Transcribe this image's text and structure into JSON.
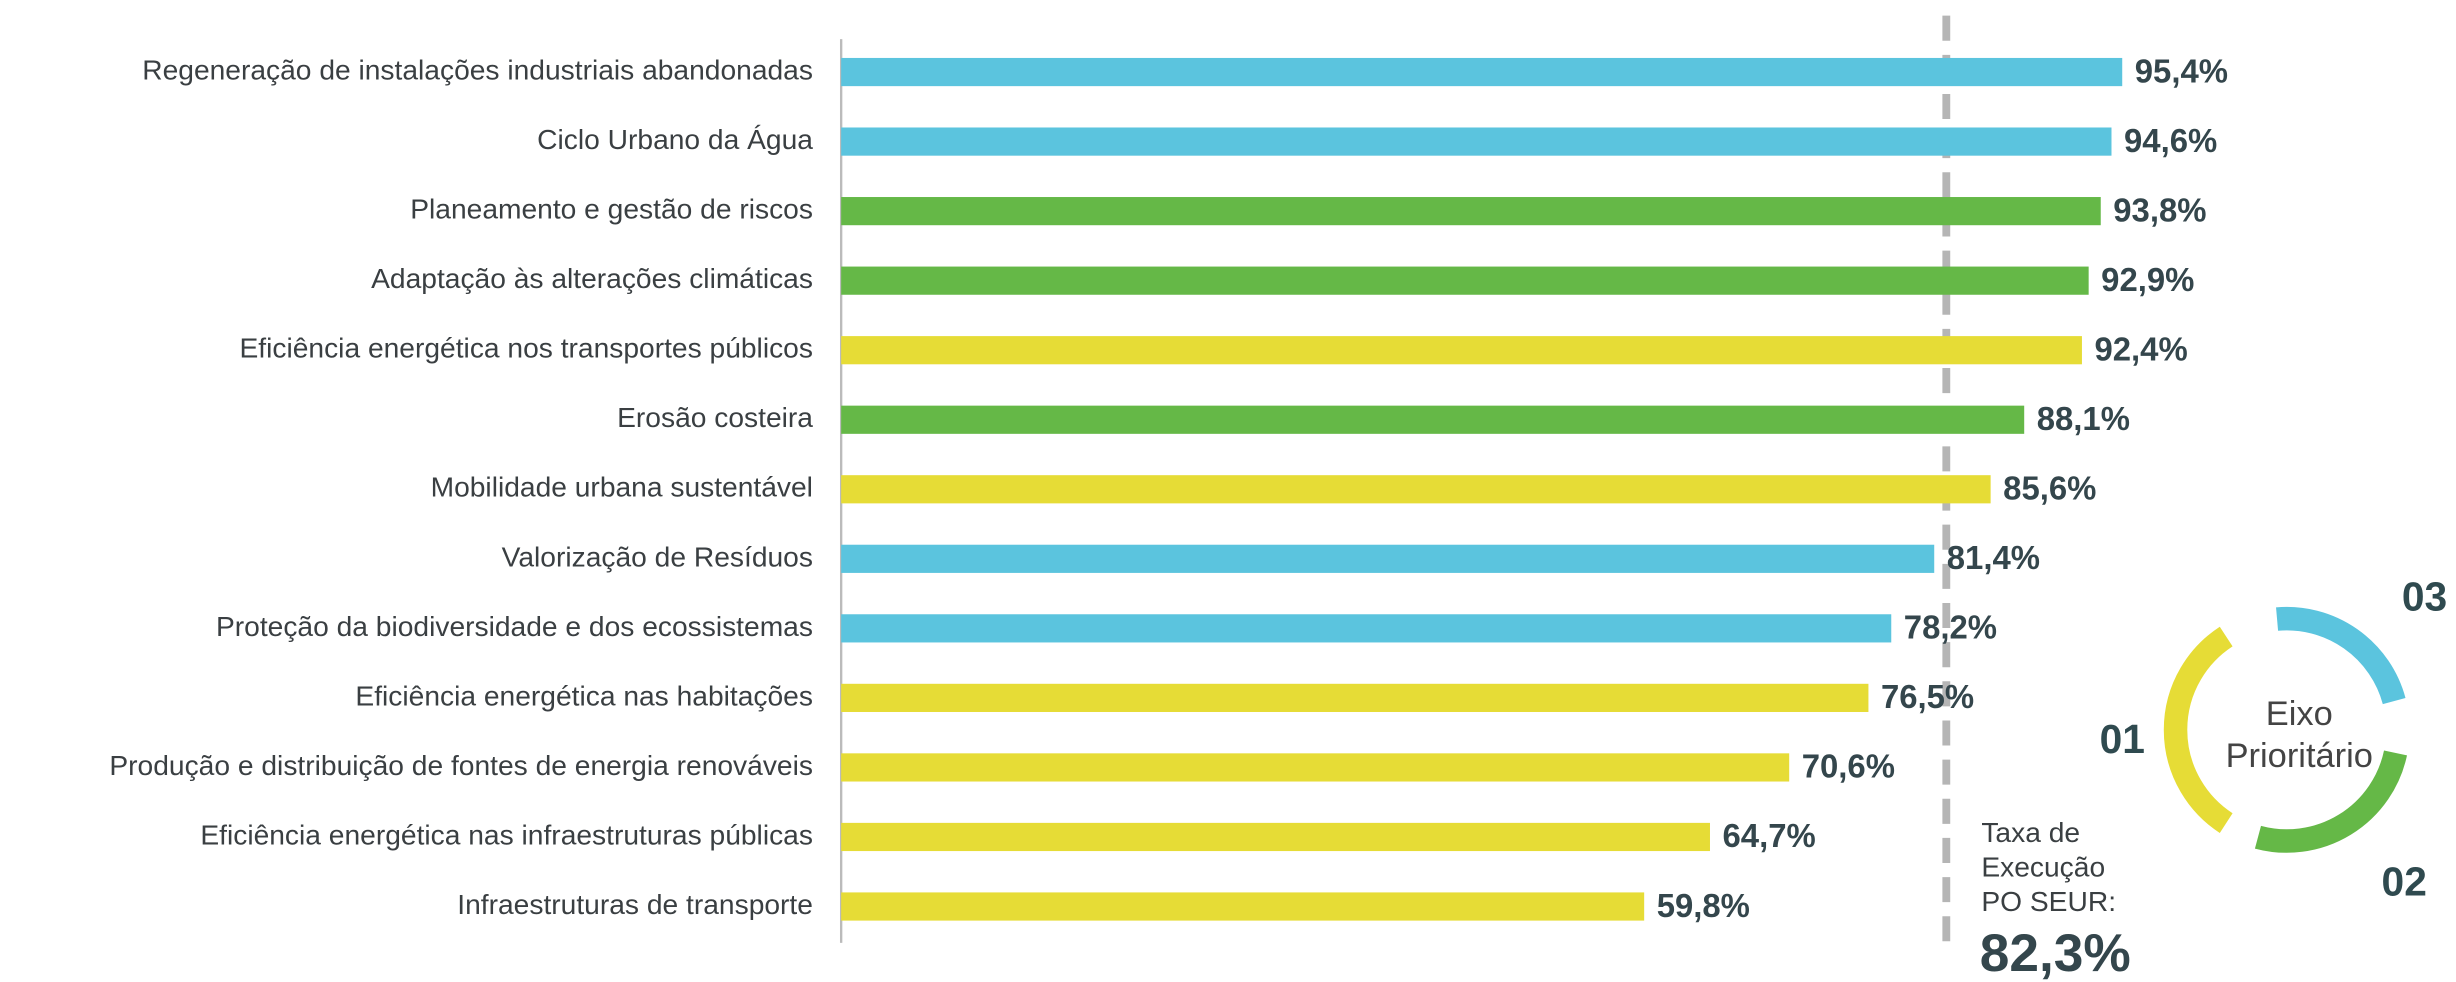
{
  "chart_data": {
    "type": "bar",
    "orientation": "horizontal",
    "categories": [
      "Regeneração de instalações industriais abandonadas",
      "Ciclo Urbano da Água",
      "Planeamento e gestão de riscos",
      "Adaptação às alterações climáticas",
      "Eficiência energética nos transportes públicos",
      "Erosão costeira",
      "Mobilidade urbana sustentável",
      "Valorização de Resíduos",
      "Proteção da biodiversidade e dos ecossistemas",
      "Eficiência energética nas habitações",
      "Produção e distribuição de fontes de energia renováveis",
      "Eficiência energética nas infraestruturas públicas",
      "Infraestruturas de transporte"
    ],
    "values": [
      95.4,
      94.6,
      93.8,
      92.9,
      92.4,
      88.1,
      85.6,
      81.4,
      78.2,
      76.5,
      70.6,
      64.7,
      59.8
    ],
    "value_labels": [
      "95,4%",
      "94,6%",
      "93,8%",
      "92,9%",
      "92,4%",
      "88,1%",
      "85,6%",
      "81,4%",
      "78,2%",
      "76,5%",
      "70,6%",
      "64,7%",
      "59,8%"
    ],
    "colors": [
      "#5bc4de",
      "#5bc4de",
      "#65b847",
      "#65b847",
      "#e6dc36",
      "#65b847",
      "#e6dc36",
      "#5bc4de",
      "#5bc4de",
      "#e6dc36",
      "#e6dc36",
      "#e6dc36",
      "#e6dc36"
    ],
    "reference_line": {
      "label_lines": [
        "Taxa de",
        "Execução",
        "PO SEUR:"
      ],
      "value": 82.3,
      "value_label": "82,3%"
    },
    "legend": {
      "title_lines": [
        "Eixo",
        "Prioritário"
      ],
      "items": [
        {
          "label": "01",
          "color": "#e6dc36"
        },
        {
          "label": "02",
          "color": "#65b847"
        },
        {
          "label": "03",
          "color": "#5bc4de"
        }
      ]
    }
  }
}
